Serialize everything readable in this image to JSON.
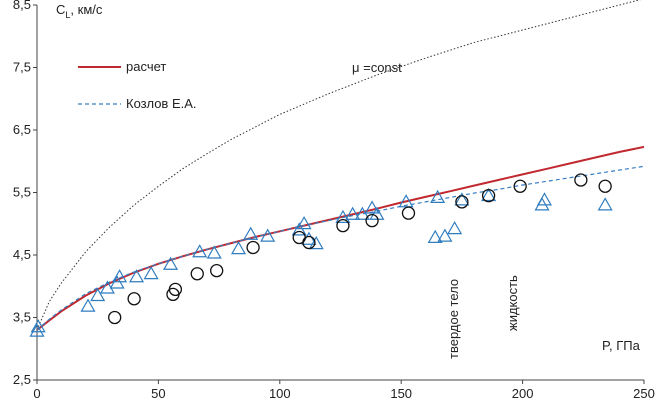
{
  "chart_data": {
    "type": "scatter",
    "title": "",
    "ylabel_main": "C",
    "ylabel_sub": "L",
    "ylabel_unit": ", км/с",
    "xlabel": "P, ГПа",
    "xlim": [
      0,
      250
    ],
    "ylim": [
      2.5,
      8.5
    ],
    "xticks": [
      0,
      50,
      100,
      150,
      200,
      250
    ],
    "yticks": [
      2.5,
      3.5,
      4.5,
      5.5,
      6.5,
      7.5,
      8.5
    ],
    "ytick_labels": [
      "2,5",
      "3,5",
      "4,5",
      "5,5",
      "6,5",
      "7,5",
      "8,5"
    ],
    "legend": [
      {
        "label": "расчет",
        "color": "#c0292f",
        "style": "solid"
      },
      {
        "label": "Козлов Е.А.",
        "color": "#3a7fc1",
        "style": "dashed"
      }
    ],
    "annotations": {
      "mu_const": "μ =const",
      "solid": "твердое тело",
      "liquid": "жидкость"
    },
    "series": [
      {
        "name": "μ =const",
        "style": "dotted",
        "color": "#333333",
        "x": [
          0,
          5,
          10,
          20,
          30,
          40,
          50,
          60,
          70,
          80,
          90,
          100,
          120,
          140,
          160,
          180,
          200,
          220,
          240,
          250
        ],
        "y": [
          3.3,
          3.75,
          4.05,
          4.55,
          4.95,
          5.3,
          5.6,
          5.88,
          6.12,
          6.35,
          6.55,
          6.75,
          7.08,
          7.38,
          7.65,
          7.9,
          8.1,
          8.3,
          8.5,
          8.6
        ]
      },
      {
        "name": "расчет",
        "style": "solid",
        "color": "#c0292f",
        "x": [
          0,
          5,
          10,
          20,
          30,
          40,
          50,
          60,
          70,
          80,
          90,
          100,
          110,
          120,
          130,
          140,
          150,
          160,
          170,
          180,
          190,
          200,
          210,
          220,
          230,
          240,
          250
        ],
        "y": [
          3.3,
          3.45,
          3.6,
          3.85,
          4.05,
          4.22,
          4.36,
          4.48,
          4.59,
          4.69,
          4.79,
          4.88,
          4.97,
          5.06,
          5.15,
          5.24,
          5.34,
          5.43,
          5.52,
          5.61,
          5.7,
          5.79,
          5.88,
          5.97,
          6.06,
          6.15,
          6.23
        ]
      },
      {
        "name": "Козлов Е.А.",
        "style": "dashed",
        "color": "#3a7fc1",
        "x": [
          0,
          5,
          10,
          20,
          30,
          40,
          50,
          60,
          70,
          80,
          90,
          100,
          110,
          120,
          130,
          140,
          150,
          160,
          170,
          180,
          190,
          200,
          210,
          220,
          230,
          240,
          250
        ],
        "y": [
          3.3,
          3.47,
          3.62,
          3.88,
          4.07,
          4.23,
          4.36,
          4.48,
          4.59,
          4.69,
          4.79,
          4.88,
          4.97,
          5.05,
          5.13,
          5.2,
          5.28,
          5.35,
          5.42,
          5.49,
          5.55,
          5.62,
          5.68,
          5.74,
          5.8,
          5.86,
          5.92
        ]
      }
    ],
    "triangles": [
      [
        0,
        3.28
      ],
      [
        0.5,
        3.35
      ],
      [
        21,
        3.68
      ],
      [
        25,
        3.85
      ],
      [
        29,
        3.97
      ],
      [
        33,
        4.05
      ],
      [
        34,
        4.15
      ],
      [
        41,
        4.15
      ],
      [
        47,
        4.2
      ],
      [
        55,
        4.35
      ],
      [
        67,
        4.55
      ],
      [
        73,
        4.53
      ],
      [
        83,
        4.6
      ],
      [
        88,
        4.83
      ],
      [
        95,
        4.8
      ],
      [
        108,
        4.9
      ],
      [
        110,
        5.0
      ],
      [
        112,
        4.75
      ],
      [
        115,
        4.68
      ],
      [
        126,
        5.1
      ],
      [
        130,
        5.15
      ],
      [
        134,
        5.15
      ],
      [
        138,
        5.25
      ],
      [
        140,
        5.15
      ],
      [
        152,
        5.35
      ],
      [
        164,
        4.78
      ],
      [
        165,
        5.42
      ],
      [
        168,
        4.8
      ],
      [
        172,
        4.92
      ],
      [
        175,
        5.38
      ],
      [
        186,
        5.45
      ],
      [
        208,
        5.3
      ],
      [
        209,
        5.38
      ],
      [
        234,
        5.3
      ]
    ],
    "circles": [
      [
        32,
        3.5
      ],
      [
        40,
        3.8
      ],
      [
        56,
        3.87
      ],
      [
        57,
        3.95
      ],
      [
        66,
        4.2
      ],
      [
        74,
        4.25
      ],
      [
        89,
        4.62
      ],
      [
        108,
        4.78
      ],
      [
        112,
        4.7
      ],
      [
        126,
        4.97
      ],
      [
        138,
        5.05
      ],
      [
        153,
        5.17
      ],
      [
        175,
        5.35
      ],
      [
        186,
        5.45
      ],
      [
        199,
        5.6
      ],
      [
        224,
        5.7
      ],
      [
        234,
        5.6
      ]
    ]
  }
}
